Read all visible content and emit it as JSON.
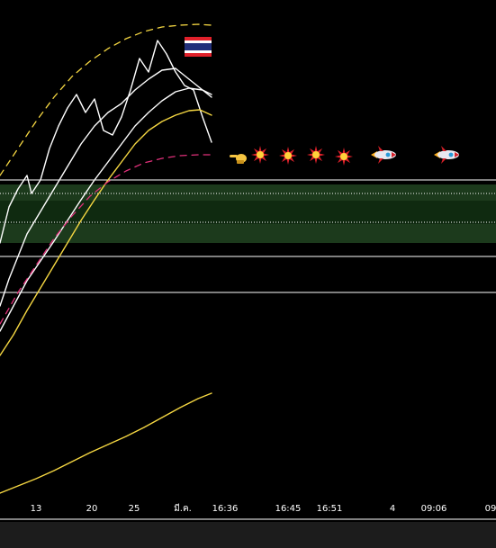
{
  "chart_data": {
    "type": "line",
    "title": "",
    "xlabel": "",
    "ylabel": "",
    "grid": false,
    "x_tick_labels": [
      "13",
      "20",
      "25",
      "มี.ค.",
      "16:36",
      "16:45",
      "16:51",
      "4",
      "09:06",
      "09"
    ],
    "series": [
      {
        "style": "white-solid",
        "color": "#ffffff",
        "dashed": false,
        "values": [
          [
            0,
            270
          ],
          [
            10,
            230
          ],
          [
            20,
            210
          ],
          [
            30,
            195
          ],
          [
            35,
            215
          ],
          [
            45,
            200
          ],
          [
            55,
            165
          ],
          [
            65,
            140
          ],
          [
            75,
            120
          ],
          [
            85,
            105
          ],
          [
            95,
            125
          ],
          [
            105,
            110
          ],
          [
            115,
            145
          ],
          [
            125,
            150
          ],
          [
            135,
            130
          ],
          [
            145,
            100
          ],
          [
            155,
            65
          ],
          [
            165,
            80
          ],
          [
            175,
            45
          ],
          [
            185,
            60
          ],
          [
            195,
            80
          ],
          [
            205,
            95
          ],
          [
            215,
            100
          ],
          [
            225,
            130
          ],
          [
            235,
            158
          ]
        ]
      },
      {
        "style": "white-solid-2",
        "color": "#ffffff",
        "dashed": false,
        "values": [
          [
            0,
            340
          ],
          [
            10,
            310
          ],
          [
            20,
            285
          ],
          [
            30,
            260
          ],
          [
            45,
            235
          ],
          [
            60,
            210
          ],
          [
            75,
            185
          ],
          [
            90,
            160
          ],
          [
            105,
            140
          ],
          [
            120,
            125
          ],
          [
            135,
            115
          ],
          [
            150,
            100
          ],
          [
            165,
            88
          ],
          [
            180,
            78
          ],
          [
            195,
            76
          ],
          [
            205,
            84
          ],
          [
            215,
            92
          ],
          [
            225,
            100
          ],
          [
            235,
            108
          ]
        ]
      },
      {
        "style": "white-solid-3",
        "color": "#ffffff",
        "dashed": false,
        "values": [
          [
            0,
            368
          ],
          [
            15,
            340
          ],
          [
            30,
            312
          ],
          [
            45,
            290
          ],
          [
            60,
            268
          ],
          [
            75,
            245
          ],
          [
            90,
            222
          ],
          [
            105,
            200
          ],
          [
            120,
            180
          ],
          [
            135,
            160
          ],
          [
            150,
            140
          ],
          [
            165,
            125
          ],
          [
            180,
            112
          ],
          [
            195,
            102
          ],
          [
            210,
            98
          ],
          [
            225,
            100
          ],
          [
            235,
            105
          ]
        ]
      },
      {
        "style": "yellow-solid",
        "color": "#f5d742",
        "dashed": false,
        "values": [
          [
            0,
            395
          ],
          [
            15,
            372
          ],
          [
            30,
            345
          ],
          [
            45,
            320
          ],
          [
            60,
            295
          ],
          [
            75,
            270
          ],
          [
            90,
            245
          ],
          [
            105,
            222
          ],
          [
            120,
            200
          ],
          [
            135,
            180
          ],
          [
            150,
            160
          ],
          [
            165,
            145
          ],
          [
            180,
            135
          ],
          [
            195,
            128
          ],
          [
            210,
            123
          ],
          [
            222,
            122
          ],
          [
            235,
            128
          ]
        ]
      },
      {
        "style": "yellow-dashed",
        "color": "#f5d742",
        "dashed": true,
        "values": [
          [
            0,
            195
          ],
          [
            20,
            165
          ],
          [
            40,
            135
          ],
          [
            60,
            108
          ],
          [
            80,
            85
          ],
          [
            100,
            68
          ],
          [
            120,
            54
          ],
          [
            140,
            43
          ],
          [
            160,
            35
          ],
          [
            180,
            30
          ],
          [
            200,
            28
          ],
          [
            220,
            27
          ],
          [
            235,
            28
          ]
        ]
      },
      {
        "style": "magenta-dashed",
        "color": "#e0307a",
        "dashed": true,
        "values": [
          [
            0,
            360
          ],
          [
            20,
            325
          ],
          [
            40,
            295
          ],
          [
            60,
            265
          ],
          [
            80,
            240
          ],
          [
            100,
            218
          ],
          [
            120,
            202
          ],
          [
            140,
            190
          ],
          [
            160,
            181
          ],
          [
            180,
            176
          ],
          [
            200,
            173
          ],
          [
            220,
            172
          ],
          [
            235,
            172
          ]
        ]
      },
      {
        "style": "yellow-low",
        "color": "#f5d742",
        "dashed": false,
        "values": [
          [
            0,
            548
          ],
          [
            20,
            540
          ],
          [
            40,
            532
          ],
          [
            60,
            523
          ],
          [
            80,
            513
          ],
          [
            100,
            503
          ],
          [
            120,
            494
          ],
          [
            140,
            485
          ],
          [
            160,
            475
          ],
          [
            180,
            464
          ],
          [
            200,
            453
          ],
          [
            220,
            443
          ],
          [
            235,
            437
          ]
        ]
      }
    ],
    "bands": [
      {
        "from": 205,
        "to": 270,
        "color": "#1c3a1c"
      }
    ],
    "hlines": [
      {
        "y": 200,
        "dotted": false
      },
      {
        "y": 215,
        "dotted": true
      },
      {
        "y": 247,
        "dotted": true
      },
      {
        "y": 285,
        "dotted": false
      },
      {
        "y": 325,
        "dotted": false
      }
    ],
    "markers": [
      {
        "kind": "flag",
        "icon": "thai-flag-icon"
      },
      {
        "kind": "hand",
        "icon": "pointing-hand-icon"
      },
      {
        "kind": "burst",
        "icon": "explosion-icon"
      },
      {
        "kind": "burst",
        "icon": "explosion-icon"
      },
      {
        "kind": "burst",
        "icon": "explosion-icon"
      },
      {
        "kind": "burst",
        "icon": "explosion-icon"
      },
      {
        "kind": "rocket",
        "icon": "rocket-icon"
      },
      {
        "kind": "rocket",
        "icon": "rocket-icon"
      }
    ]
  }
}
